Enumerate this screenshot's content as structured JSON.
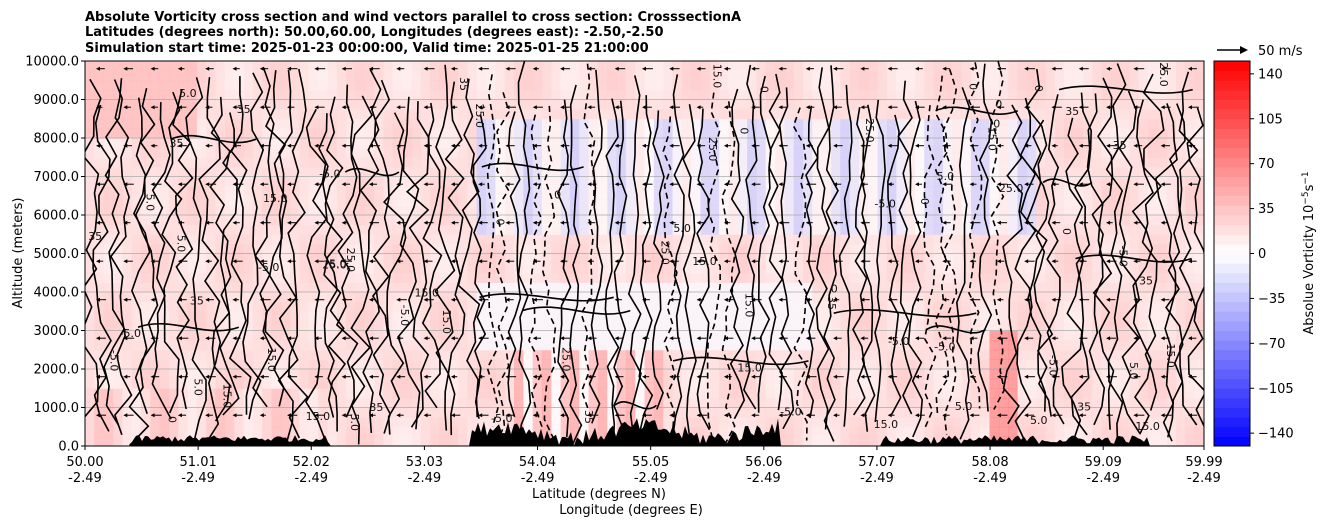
{
  "chart_data": {
    "type": "heatmap",
    "title_lines": [
      "Absolute Vorticity cross section and wind vectors parallel to cross section: CrosssectionA",
      "Latitudes (degrees north): 50.00,60.00, Longitudes (degrees east): -2.50,-2.50",
      "Simulation start time: 2025-01-23 00:00:00, Valid time: 2025-01-25 21:00:00"
    ],
    "ylabel": "Altitude (meters)",
    "xlabel_lines": [
      "Latitude (degrees N)",
      "Longitude (degrees E)"
    ],
    "ylim": [
      0,
      10000
    ],
    "y_ticks": [
      "0.0",
      "1000.0",
      "2000.0",
      "3000.0",
      "4000.0",
      "5000.0",
      "6000.0",
      "7000.0",
      "8000.0",
      "9000.0",
      "10000.0"
    ],
    "x_tick_positions": [
      50.0,
      51.01,
      52.02,
      53.03,
      54.04,
      55.05,
      56.06,
      57.07,
      58.08,
      59.09,
      59.99
    ],
    "x_ticks_lat": [
      "50.00",
      "51.01",
      "52.02",
      "53.03",
      "54.04",
      "55.05",
      "56.06",
      "57.07",
      "58.08",
      "59.09",
      "59.99"
    ],
    "x_ticks_lon": [
      "-2.49",
      "-2.49",
      "-2.49",
      "-2.49",
      "-2.49",
      "-2.49",
      "-2.49",
      "-2.49",
      "-2.49",
      "-2.49",
      "-2.49"
    ],
    "xlim": [
      50.0,
      59.99
    ],
    "grid": "horizontal",
    "colorbar": {
      "label": "Absolue Vorticity 10",
      "label_exp": "−5",
      "label_unit": "s",
      "label_unit_exp": "−1",
      "range": [
        -150,
        150
      ],
      "ticks": [
        "140",
        "105",
        "70",
        "35",
        "0",
        "−35",
        "−70",
        "−105",
        "−140"
      ],
      "tick_values": [
        140,
        105,
        70,
        35,
        0,
        -35,
        -70,
        -105,
        -140
      ],
      "colormap": "bwr"
    },
    "quiver_key": {
      "label": "50 m/s",
      "value": 50
    },
    "contour_levels": [
      -5.0,
      5.0,
      15.0,
      25.0,
      35.0
    ],
    "contour_labels": [
      "15.0",
      "25.0",
      "35",
      "5.0",
      "-5.0",
      "0"
    ],
    "colors": {
      "positive": "#ff0000",
      "negative": "#0000ff",
      "neutral": "#ffffff",
      "terrain": "#000000"
    }
  }
}
